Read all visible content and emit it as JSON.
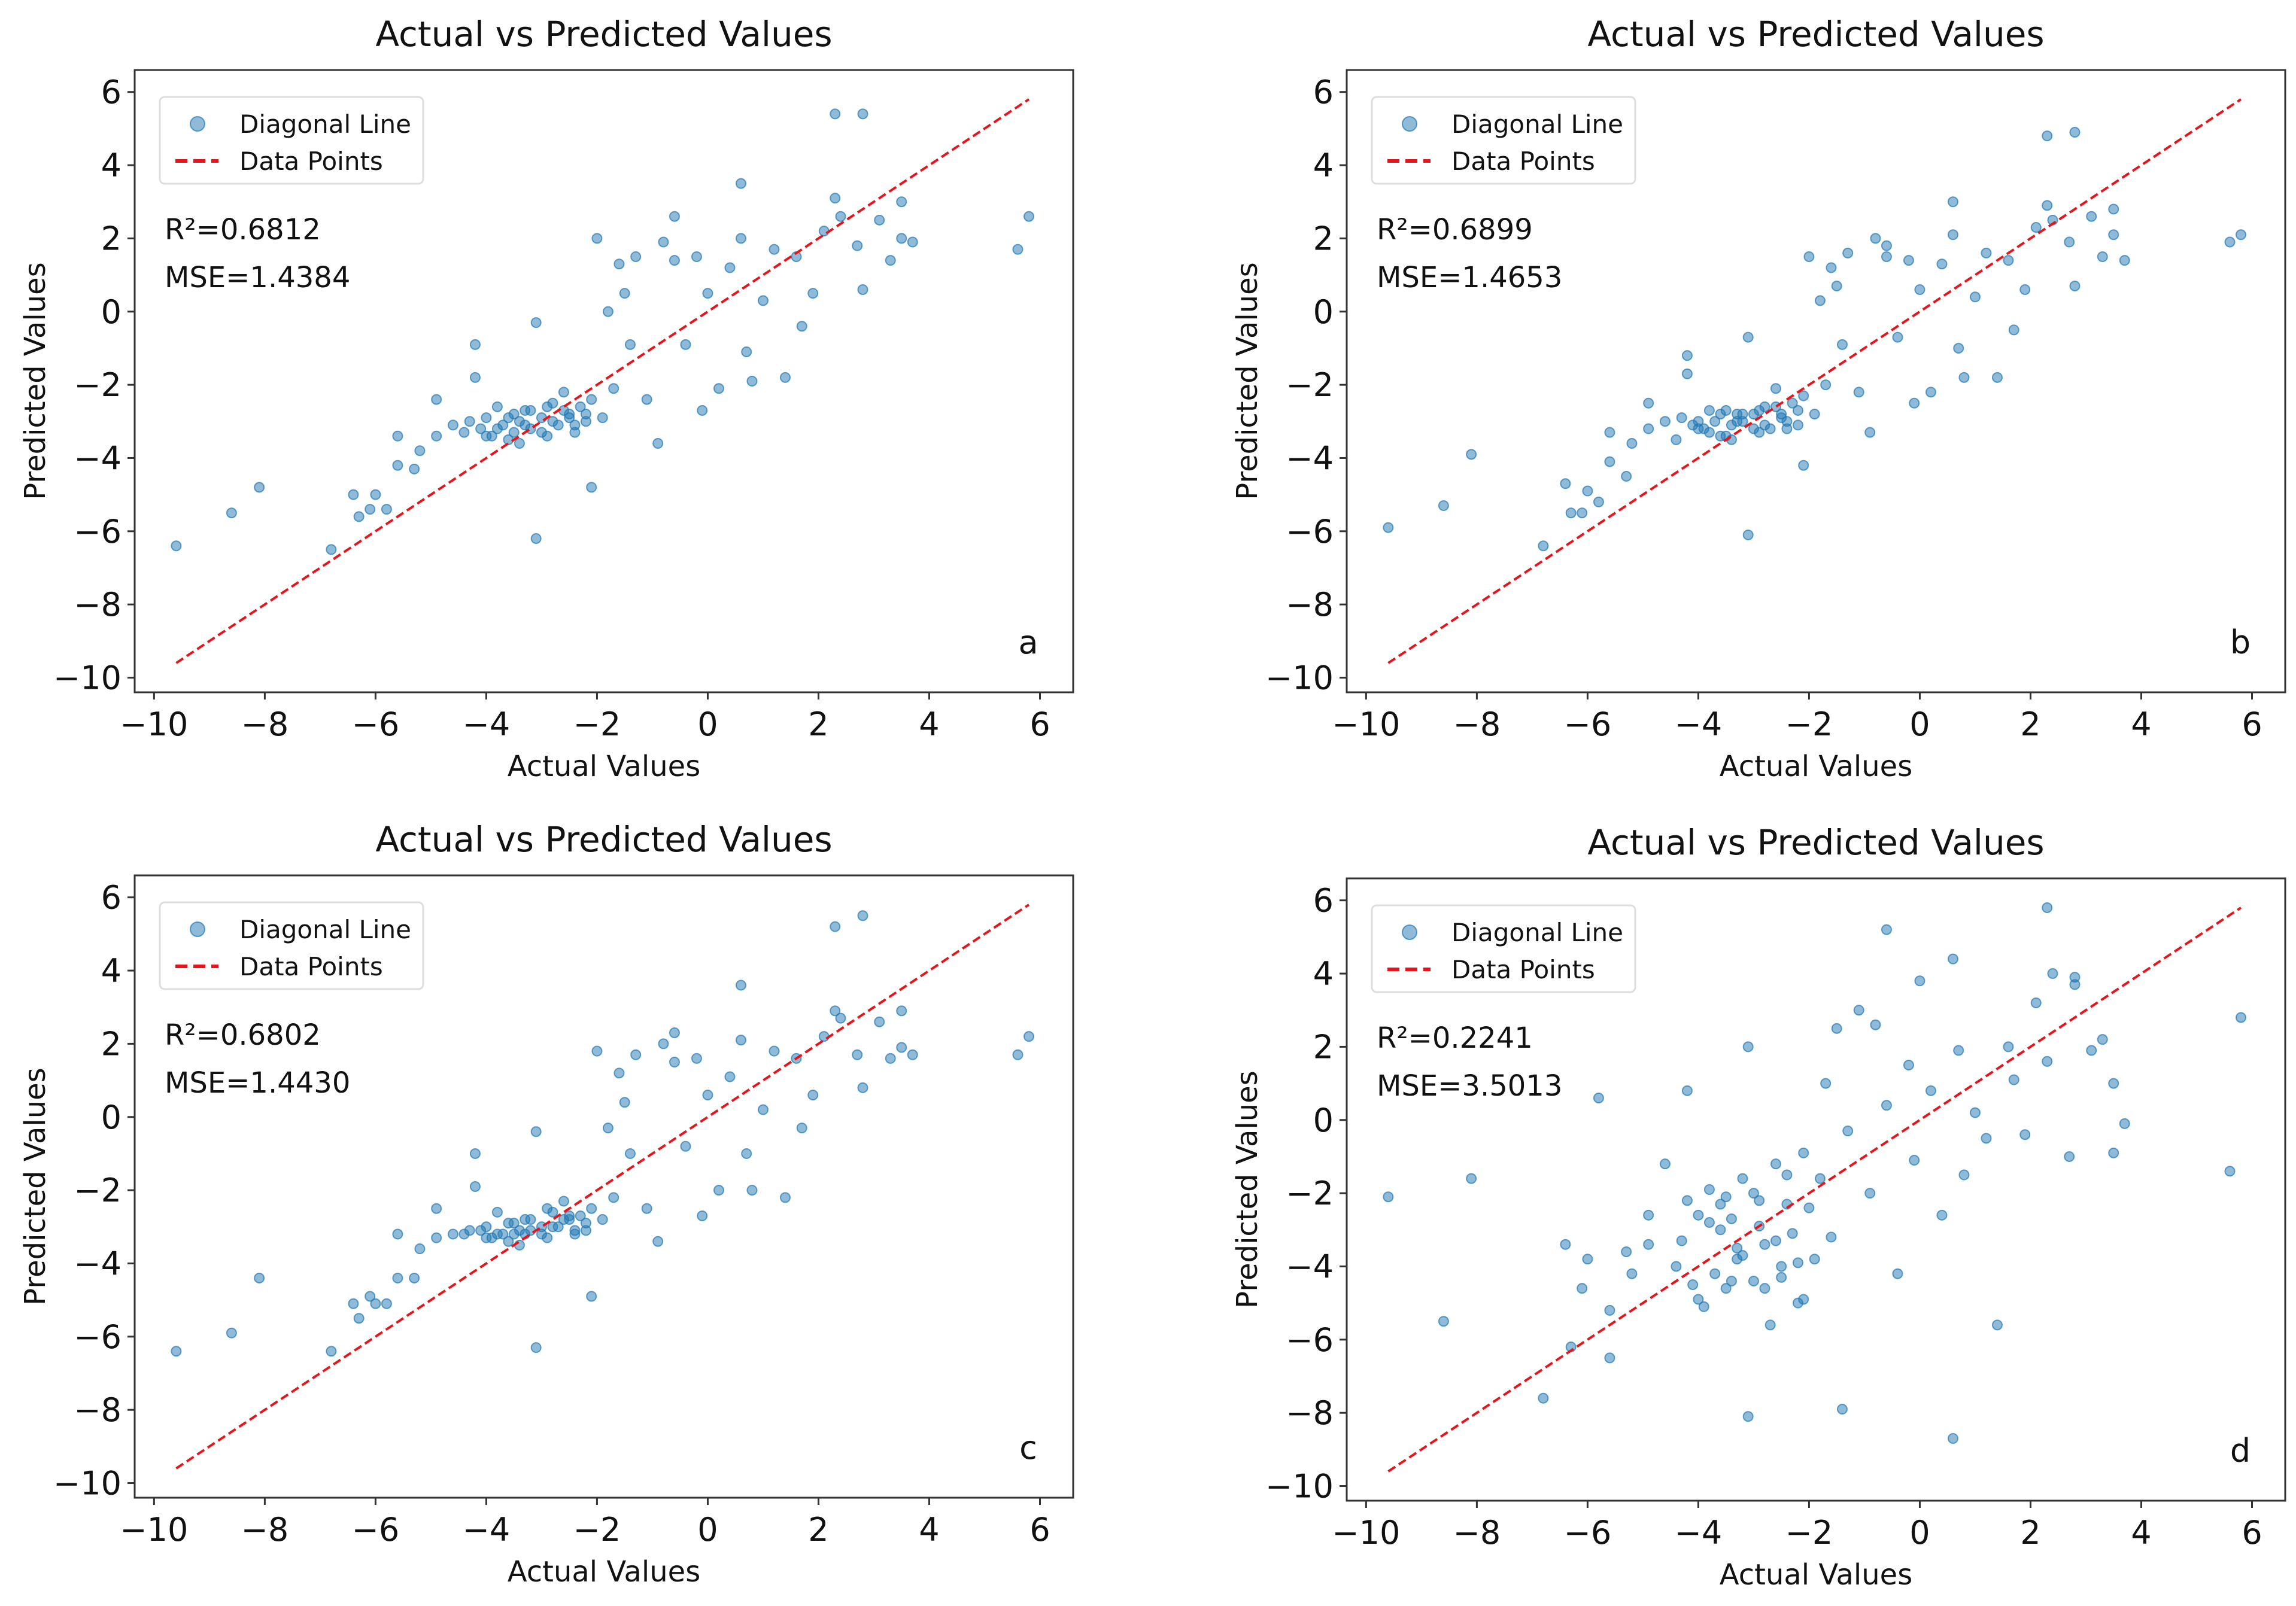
{
  "chart_data": {
    "type": "scatter",
    "layout": "2x2 grid",
    "shared": {
      "title": "Actual vs Predicted Values",
      "xlabel": "Actual Values",
      "ylabel": "Predicted Values",
      "xlim": [
        -10.35,
        6.6
      ],
      "ylim": [
        -10.4,
        6.6
      ],
      "xticks": [
        -10,
        -8,
        -6,
        -4,
        -2,
        0,
        2,
        4,
        6
      ],
      "yticks": [
        -10,
        -8,
        -6,
        -4,
        -2,
        0,
        2,
        4,
        6
      ],
      "xtick_labels": [
        "−10",
        "−8",
        "−6",
        "−4",
        "−2",
        "0",
        "2",
        "4",
        "6"
      ],
      "ytick_labels": [
        "−10",
        "−8",
        "−6",
        "−4",
        "−2",
        "0",
        "2",
        "4",
        "6"
      ],
      "legend": {
        "placement": "top-left",
        "entries": [
          "Diagonal Line",
          "Data Points"
        ]
      },
      "diagonal": {
        "from": -9.6,
        "to": 5.8
      },
      "grid": false,
      "point_color": "#1f77b4",
      "line_color": "#e8141b",
      "actual": [
        -9.6,
        -8.6,
        -8.1,
        -6.8,
        -6.4,
        -6.3,
        -6.1,
        -6.0,
        -5.8,
        -5.6,
        -5.6,
        -5.3,
        -5.2,
        -4.9,
        -4.9,
        -4.6,
        -4.4,
        -4.3,
        -4.2,
        -4.2,
        -4.1,
        -4.0,
        -3.9,
        -3.8,
        -3.7,
        -3.6,
        -3.5,
        -3.5,
        -3.4,
        -3.3,
        -3.2,
        -3.1,
        -3.1,
        -3.0,
        -2.9,
        -2.8,
        -2.7,
        -2.6,
        -2.5,
        -2.4,
        -2.3,
        -2.2,
        -2.1,
        -2.1,
        -2.0,
        -1.9,
        -1.8,
        -1.7,
        -1.6,
        -1.5,
        -1.4,
        -1.3,
        -1.1,
        -0.9,
        -0.8,
        -0.6,
        -0.6,
        -0.4,
        -0.2,
        -0.1,
        0.0,
        0.2,
        0.4,
        0.6,
        0.6,
        0.7,
        0.8,
        1.0,
        1.2,
        1.4,
        1.6,
        1.7,
        1.9,
        2.1,
        2.3,
        2.3,
        2.4,
        2.7,
        2.8,
        2.8,
        3.1,
        3.3,
        3.5,
        3.5,
        3.7,
        5.6,
        5.8,
        -3.6,
        -3.4,
        -3.2,
        -3.0,
        -2.8,
        -2.6,
        -2.4,
        -2.2,
        -3.8,
        -4.0,
        -2.9,
        -3.3,
        -2.5
      ]
    },
    "panels": [
      {
        "label": "a",
        "r2_text": "R²=0.6812",
        "mse_text": "MSE=1.4384",
        "r2": 0.6812,
        "mse": 1.4384,
        "predicted": [
          -6.4,
          -5.5,
          -4.8,
          -6.5,
          -5.0,
          -5.6,
          -5.4,
          -5.0,
          -5.4,
          -4.2,
          -3.4,
          -4.3,
          -3.8,
          -2.4,
          -3.4,
          -3.1,
          -3.3,
          -3.0,
          -0.9,
          -1.8,
          -3.2,
          -2.9,
          -3.4,
          -2.6,
          -3.1,
          -3.5,
          -2.8,
          -3.3,
          -3.0,
          -2.7,
          -3.2,
          -6.2,
          -0.3,
          -2.9,
          -3.4,
          -2.5,
          -3.1,
          -2.2,
          -2.8,
          -3.3,
          -2.6,
          -3.0,
          -4.8,
          -2.4,
          2.0,
          -2.9,
          0.0,
          -2.1,
          1.3,
          0.5,
          -0.9,
          1.5,
          -2.4,
          -3.6,
          1.9,
          2.6,
          1.4,
          -0.9,
          1.5,
          -2.7,
          0.5,
          -2.1,
          1.2,
          3.5,
          2.0,
          -1.1,
          -1.9,
          0.3,
          1.7,
          -1.8,
          1.5,
          -0.4,
          0.5,
          2.2,
          3.1,
          5.4,
          2.6,
          1.8,
          5.4,
          0.6,
          2.5,
          1.4,
          3.0,
          2.0,
          1.9,
          1.7,
          2.6,
          -2.9,
          -3.6,
          -2.7,
          -3.3,
          -3.0,
          -2.7,
          -3.1,
          -2.8,
          -3.2,
          -3.4,
          -2.6,
          -3.1,
          -2.9
        ]
      },
      {
        "label": "b",
        "r2_text": "R²=0.6899",
        "mse_text": "MSE=1.4653",
        "r2": 0.6899,
        "mse": 1.4653,
        "predicted": [
          -5.9,
          -5.3,
          -3.9,
          -6.4,
          -4.7,
          -5.5,
          -5.5,
          -4.9,
          -5.2,
          -4.1,
          -3.3,
          -4.5,
          -3.6,
          -2.5,
          -3.2,
          -3.0,
          -3.5,
          -2.9,
          -1.2,
          -1.7,
          -3.1,
          -3.0,
          -3.2,
          -2.7,
          -3.0,
          -3.4,
          -2.7,
          -3.4,
          -3.1,
          -2.8,
          -3.0,
          -6.1,
          -0.7,
          -2.8,
          -3.3,
          -2.6,
          -3.2,
          -2.1,
          -2.9,
          -3.2,
          -2.5,
          -3.1,
          -4.2,
          -2.3,
          1.5,
          -2.8,
          0.3,
          -2.0,
          1.2,
          0.7,
          -0.9,
          1.6,
          -2.2,
          -3.3,
          2.0,
          1.8,
          1.5,
          -0.7,
          1.4,
          -2.5,
          0.6,
          -2.2,
          1.3,
          3.0,
          2.1,
          -1.0,
          -1.8,
          0.4,
          1.6,
          -1.8,
          1.4,
          -0.5,
          0.6,
          2.3,
          2.9,
          4.8,
          2.5,
          1.9,
          4.9,
          0.7,
          2.6,
          1.5,
          2.8,
          2.1,
          1.4,
          1.9,
          2.1,
          -2.8,
          -3.5,
          -2.8,
          -3.2,
          -3.1,
          -2.6,
          -3.0,
          -2.7,
          -3.3,
          -3.2,
          -2.7,
          -3.0,
          -2.8
        ]
      },
      {
        "label": "c",
        "r2_text": "R²=0.6802",
        "mse_text": "MSE=1.4430",
        "r2": 0.6802,
        "mse": 1.443,
        "predicted": [
          -6.4,
          -5.9,
          -4.4,
          -6.4,
          -5.1,
          -5.5,
          -4.9,
          -5.1,
          -5.1,
          -4.4,
          -3.2,
          -4.4,
          -3.6,
          -2.5,
          -3.3,
          -3.2,
          -3.2,
          -3.1,
          -1.0,
          -1.9,
          -3.1,
          -3.0,
          -3.3,
          -2.6,
          -3.2,
          -3.4,
          -2.9,
          -3.2,
          -3.1,
          -2.8,
          -3.1,
          -6.3,
          -0.4,
          -3.0,
          -3.3,
          -2.6,
          -3.0,
          -2.3,
          -2.7,
          -3.2,
          -2.7,
          -3.1,
          -4.9,
          -2.5,
          1.8,
          -2.8,
          -0.3,
          -2.2,
          1.2,
          0.4,
          -1.0,
          1.7,
          -2.5,
          -3.4,
          2.0,
          2.3,
          1.5,
          -0.8,
          1.6,
          -2.7,
          0.6,
          -2.0,
          1.1,
          3.6,
          2.1,
          -1.0,
          -2.0,
          0.2,
          1.8,
          -2.2,
          1.6,
          -0.3,
          0.6,
          2.2,
          2.9,
          5.2,
          2.7,
          1.7,
          5.5,
          0.8,
          2.6,
          1.6,
          2.9,
          1.9,
          1.7,
          1.7,
          2.2,
          -2.9,
          -3.5,
          -2.8,
          -3.2,
          -3.0,
          -2.8,
          -3.1,
          -2.9,
          -3.2,
          -3.3,
          -2.5,
          -3.2,
          -2.8
        ]
      },
      {
        "label": "d",
        "r2_text": "R²=0.2241",
        "mse_text": "MSE=3.5013",
        "r2": 0.2241,
        "mse": 3.5013,
        "predicted": [
          -2.1,
          -5.5,
          -1.6,
          -7.6,
          -3.4,
          -6.2,
          -4.6,
          -3.8,
          0.6,
          -5.2,
          -6.5,
          -3.6,
          -4.2,
          -3.4,
          -2.6,
          -1.2,
          -4.0,
          -3.3,
          0.8,
          -2.2,
          -4.5,
          -2.6,
          -5.1,
          -1.9,
          -4.2,
          -3.0,
          -2.1,
          -4.6,
          -2.7,
          -3.8,
          -1.6,
          -8.1,
          2.0,
          -4.4,
          -2.9,
          -3.4,
          -5.6,
          -1.2,
          -4.3,
          -2.3,
          -3.1,
          -5.0,
          -4.9,
          -0.9,
          -2.4,
          -3.8,
          -1.6,
          1.0,
          -3.2,
          2.5,
          -7.9,
          -0.3,
          3.0,
          -2.0,
          2.6,
          5.2,
          0.4,
          -4.2,
          1.5,
          -1.1,
          3.8,
          0.8,
          -2.6,
          -8.7,
          4.4,
          1.9,
          -1.5,
          0.2,
          -0.5,
          -5.6,
          2.0,
          1.1,
          -0.4,
          3.2,
          5.8,
          1.6,
          4.0,
          -1.0,
          3.7,
          3.9,
          1.9,
          2.2,
          -0.9,
          1.0,
          -0.1,
          -1.4,
          2.8,
          -2.3,
          -4.4,
          -3.7,
          -2.0,
          -4.6,
          -3.3,
          -1.5,
          -3.9,
          -2.8,
          -4.9,
          -2.2,
          -3.5,
          -4.0
        ]
      }
    ]
  }
}
